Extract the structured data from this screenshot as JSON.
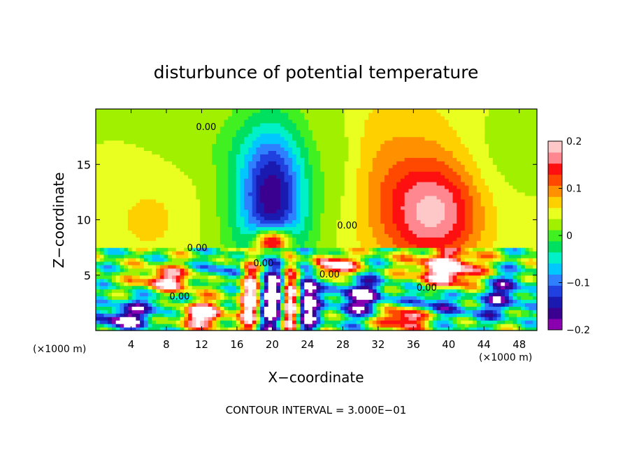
{
  "chart_data": {
    "type": "heatmap",
    "title": "disturbunce of potential temperature",
    "xlabel": "X−coordinate",
    "ylabel": "Z−coordinate",
    "x_unit": "(×1000 m)",
    "y_unit": "(×1000 m)",
    "xlim": [
      0,
      50
    ],
    "ylim": [
      0,
      20
    ],
    "x_ticks": [
      4,
      8,
      12,
      16,
      20,
      24,
      28,
      32,
      36,
      40,
      44,
      48
    ],
    "y_ticks": [
      5,
      10,
      15
    ],
    "footer": "CONTOUR INTERVAL = 3.000E−01",
    "colorbar": {
      "min": -0.2,
      "max": 0.2,
      "tick_labels": [
        "0.2",
        "0.1",
        "0",
        "−0.1",
        "−0.2"
      ],
      "tick_values": [
        0.2,
        0.1,
        0,
        -0.1,
        -0.2
      ],
      "colors": [
        "#8a00b0",
        "#3a0090",
        "#1a1ab0",
        "#2040e0",
        "#2f80ff",
        "#00c8ff",
        "#00f0c8",
        "#00e060",
        "#40f020",
        "#a0f000",
        "#e8ff20",
        "#ffd000",
        "#ff9000",
        "#ff4800",
        "#ff1010",
        "#ff8890",
        "#ffc8c8"
      ]
    },
    "contour_labels": [
      {
        "text": "0.00",
        "x": 12.5,
        "y": 18.1
      },
      {
        "text": "0.00",
        "x": 28.5,
        "y": 9.2
      },
      {
        "text": "0.00",
        "x": 11.5,
        "y": 7.2
      },
      {
        "text": "0.00",
        "x": 9.5,
        "y": 2.8
      },
      {
        "text": "0.00",
        "x": 19.0,
        "y": 5.8
      },
      {
        "text": "0.00",
        "x": 26.5,
        "y": 4.8
      },
      {
        "text": "0.00",
        "x": 37.5,
        "y": 3.6
      }
    ],
    "upper_field_blobs": [
      {
        "x": 20.0,
        "y": 12.0,
        "rx": 4.8,
        "ry": 7.5,
        "v": -0.13
      },
      {
        "x": 20.0,
        "y": 12.5,
        "rx": 3.2,
        "ry": 5.0,
        "v": -0.08
      },
      {
        "x": 38.5,
        "y": 10.5,
        "rx": 5.5,
        "ry": 4.5,
        "v": 0.12
      },
      {
        "x": 34.0,
        "y": 14.0,
        "rx": 9.0,
        "ry": 8.0,
        "v": 0.05
      },
      {
        "x": 6.0,
        "y": 10.0,
        "rx": 5.0,
        "ry": 4.0,
        "v": 0.03
      },
      {
        "x": 13.0,
        "y": 17.0,
        "rx": 6.0,
        "ry": 3.0,
        "v": -0.01
      },
      {
        "x": 45.0,
        "y": 15.0,
        "rx": 4.0,
        "ry": 5.0,
        "v": -0.02
      },
      {
        "x": 28.0,
        "y": 15.0,
        "rx": 2.5,
        "ry": 6.0,
        "v": -0.03
      },
      {
        "x": 20.0,
        "y": 8.0,
        "rx": 2.0,
        "ry": 1.2,
        "v": 0.25
      }
    ],
    "lower_field_blobs": [
      {
        "x": 20.0,
        "y": 3.0,
        "rx": 1.4,
        "ry": 4.0,
        "v": -0.25
      },
      {
        "x": 24.0,
        "y": 3.0,
        "rx": 1.2,
        "ry": 4.0,
        "v": -0.25
      },
      {
        "x": 22.0,
        "y": 3.0,
        "rx": 1.0,
        "ry": 4.2,
        "v": 0.25
      },
      {
        "x": 17.5,
        "y": 3.0,
        "rx": 1.0,
        "ry": 4.0,
        "v": 0.25
      },
      {
        "x": 40.0,
        "y": 5.5,
        "rx": 4.0,
        "ry": 1.8,
        "v": 0.25
      },
      {
        "x": 38.0,
        "y": 2.5,
        "rx": 3.0,
        "ry": 1.5,
        "v": -0.15
      },
      {
        "x": 30.0,
        "y": 3.0,
        "rx": 3.0,
        "ry": 2.0,
        "v": -0.2
      },
      {
        "x": 8.0,
        "y": 4.5,
        "rx": 3.0,
        "ry": 1.2,
        "v": 0.2
      },
      {
        "x": 6.0,
        "y": 2.5,
        "rx": 4.0,
        "ry": 1.2,
        "v": -0.1
      },
      {
        "x": 3.0,
        "y": 1.0,
        "rx": 3.0,
        "ry": 1.0,
        "v": -0.2
      },
      {
        "x": 12.0,
        "y": 1.5,
        "rx": 2.5,
        "ry": 1.2,
        "v": 0.25
      },
      {
        "x": 46.0,
        "y": 3.5,
        "rx": 3.0,
        "ry": 2.0,
        "v": -0.15
      },
      {
        "x": 35.0,
        "y": 1.2,
        "rx": 3.0,
        "ry": 1.0,
        "v": 0.25
      },
      {
        "x": 27.0,
        "y": 5.8,
        "rx": 2.5,
        "ry": 1.0,
        "v": 0.25
      },
      {
        "x": 14.0,
        "y": 5.5,
        "rx": 2.0,
        "ry": 1.0,
        "v": -0.1
      },
      {
        "x": 43.0,
        "y": 1.5,
        "rx": 3.0,
        "ry": 1.0,
        "v": -0.05
      }
    ]
  }
}
